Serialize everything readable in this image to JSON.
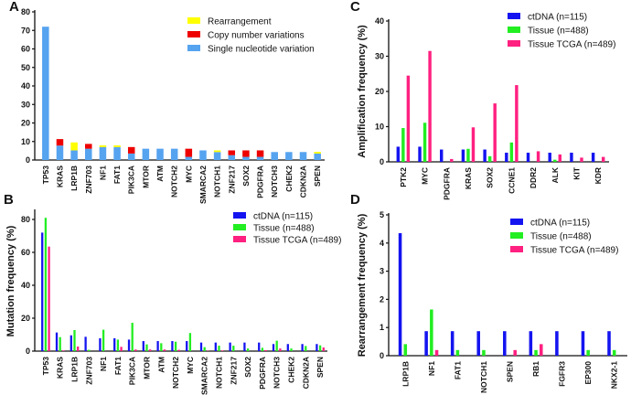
{
  "chart_data": [
    {
      "panel": "A",
      "type": "bar",
      "stacked": true,
      "title": "",
      "xlabel": "",
      "ylabel": "",
      "ylim": [
        0,
        80
      ],
      "yticks": [
        0,
        10,
        20,
        30,
        40,
        50,
        60,
        70,
        80
      ],
      "legend_position": "top-right",
      "categories": [
        "TP53",
        "KRAS",
        "LRP1B",
        "ZNF703",
        "NF1",
        "FAT1",
        "PIK3CA",
        "MTOR",
        "ATM",
        "NOTCH2",
        "MYC",
        "SMARCA2",
        "NOTCH1",
        "ZNF217",
        "SOX2",
        "PDGFRA",
        "NOTCH3",
        "CHEK2",
        "CDKN2A",
        "SPEN"
      ],
      "series": [
        {
          "name": "Single nucleotide variation",
          "color": "#56a3f0",
          "values": [
            72,
            7.8,
            5.2,
            6.1,
            7,
            7,
            3.5,
            6.1,
            6.1,
            6.1,
            1.7,
            5.2,
            4.3,
            2.6,
            1.7,
            1.7,
            4.3,
            4.3,
            4.3,
            3.5
          ]
        },
        {
          "name": "Copy number variations",
          "color": "#ee0000",
          "values": [
            0,
            3.5,
            0,
            2.6,
            0,
            0,
            3.5,
            0,
            0,
            0,
            4.4,
            0,
            0,
            2.6,
            3.5,
            3.5,
            0,
            0,
            0,
            0
          ]
        },
        {
          "name": "Rearrangement",
          "color": "#ffff00",
          "values": [
            0,
            0,
            4.3,
            0,
            0.9,
            0.9,
            0,
            0,
            0,
            0,
            0,
            0,
            0.9,
            0,
            0,
            0,
            0,
            0,
            0,
            0.9
          ]
        }
      ],
      "legend_order": [
        "Rearrangement",
        "Copy number variations",
        "Single nucleotide variation"
      ]
    },
    {
      "panel": "B",
      "type": "bar",
      "title": "",
      "xlabel": "",
      "ylabel": "Mutation frequency (%)",
      "ylim": [
        0,
        85
      ],
      "yticks": [
        0,
        20,
        40,
        60,
        80
      ],
      "legend_position": "top-right",
      "categories": [
        "TP53",
        "KRAS",
        "LRP1B",
        "ZNF703",
        "NF1",
        "FAT1",
        "PIK3CA",
        "MTOR",
        "ATM",
        "NOTCH2",
        "MYC",
        "SMARCA2",
        "NOTCH1",
        "ZNF217",
        "SOX2",
        "PDGFRA",
        "NOTCH3",
        "CHEK2",
        "CDKN2A",
        "SPEN"
      ],
      "series": [
        {
          "name": "ctDNA (n=115)",
          "color": "#1414f0",
          "values": [
            72,
            11.3,
            9.6,
            8.7,
            7.8,
            7.8,
            7,
            6.1,
            6.1,
            6.1,
            6.1,
            5.2,
            5.2,
            5.2,
            5.2,
            5.2,
            4.3,
            4.3,
            4.3,
            4.3
          ]
        },
        {
          "name": "Tissue (n=488)",
          "color": "#22ee22",
          "values": [
            81,
            8.5,
            12.8,
            0.8,
            13,
            7,
            17.2,
            4.1,
            4.8,
            5.7,
            11,
            2.4,
            3.3,
            3.3,
            1.6,
            2,
            6.3,
            1.6,
            3.1,
            3.5
          ]
        },
        {
          "name": "Tissue TCGA (n=489)",
          "color": "#ff2080",
          "values": [
            63.5,
            0.4,
            2.8,
            0,
            0,
            2.6,
            1,
            1,
            1,
            0.8,
            0,
            0.2,
            0.4,
            0,
            0,
            0.6,
            1.6,
            0,
            0,
            2.2
          ]
        }
      ]
    },
    {
      "panel": "C",
      "type": "bar",
      "title": "",
      "xlabel": "",
      "ylabel": "Amplification frequency (%)",
      "ylim": [
        0,
        40
      ],
      "yticks": [
        0,
        10,
        20,
        30,
        40
      ],
      "legend_position": "top-right",
      "categories": [
        "PTK2",
        "MYC",
        "PDGFRA",
        "KRAS",
        "SOX2",
        "CCNE1",
        "DDR2",
        "ALK",
        "KIT",
        "KDR"
      ],
      "series": [
        {
          "name": "ctDNA (n=115)",
          "color": "#1414f0",
          "values": [
            4.3,
            4.3,
            3.5,
            3.5,
            3.5,
            2.6,
            2.6,
            2.6,
            2.6,
            2.6
          ]
        },
        {
          "name": "Tissue (n=488)",
          "color": "#22ee22",
          "values": [
            9.6,
            11.1,
            0,
            3.7,
            1.6,
            5.5,
            0,
            0.6,
            0,
            0
          ]
        },
        {
          "name": "Tissue TCGA (n=489)",
          "color": "#ff2080",
          "values": [
            24.5,
            31.5,
            0.8,
            9.8,
            16.6,
            21.8,
            3,
            2.1,
            1.2,
            1.4
          ]
        }
      ]
    },
    {
      "panel": "D",
      "type": "bar",
      "title": "",
      "xlabel": "",
      "ylabel": "Rearrangement frequency (%)",
      "ylim": [
        0,
        5
      ],
      "yticks": [
        0,
        1,
        2,
        3,
        4,
        5
      ],
      "legend_position": "top-right",
      "categories": [
        "LRP1B",
        "NF1",
        "FAT1",
        "NOTCH1",
        "SPEN",
        "RB1",
        "FGFR3",
        "EP300",
        "NKX2-1"
      ],
      "series": [
        {
          "name": "ctDNA (n=115)",
          "color": "#1414f0",
          "values": [
            4.35,
            0.87,
            0.87,
            0.87,
            0.87,
            0.87,
            0.87,
            0.87,
            0.87
          ]
        },
        {
          "name": "Tissue (n=488)",
          "color": "#22ee22",
          "values": [
            0.41,
            1.64,
            0.2,
            0.2,
            0,
            0.2,
            0,
            0.2,
            0.2
          ]
        },
        {
          "name": "Tissue TCGA (n=489)",
          "color": "#ff2080",
          "values": [
            0,
            0.2,
            0,
            0,
            0.2,
            0.41,
            0,
            0,
            0
          ]
        }
      ]
    }
  ]
}
